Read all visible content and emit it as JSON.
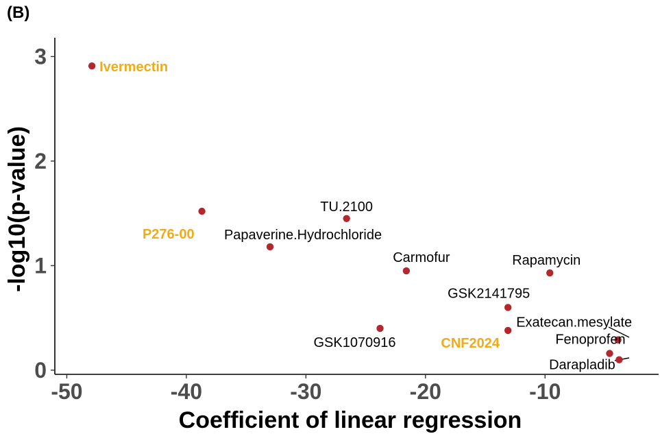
{
  "panel_tag": "(B)",
  "chart_data": {
    "type": "scatter",
    "title": "",
    "xlabel": "Coefficient of linear regression",
    "ylabel": "-log10(p-value)",
    "xlim": [
      -51,
      -0.5
    ],
    "ylim": [
      -0.04,
      3.18
    ],
    "xticks": [
      -50,
      -40,
      -30,
      -20,
      -10
    ],
    "xtick_labels": [
      "-50",
      "-40",
      "-30",
      "-20",
      "-10"
    ],
    "yticks": [
      0,
      1,
      2,
      3
    ],
    "ytick_labels": [
      "0",
      "1",
      "2",
      "3"
    ],
    "grid": false,
    "point_color": "#b2282d",
    "highlight_color": "#f0ab1b",
    "points": [
      {
        "label": "Ivermectin",
        "x": -47.9,
        "y": 2.91,
        "highlight": true
      },
      {
        "label": "P276-00",
        "x": -38.7,
        "y": 1.52,
        "highlight": true
      },
      {
        "label": "TU.2100",
        "x": -26.6,
        "y": 1.45,
        "highlight": false
      },
      {
        "label": "Papaverine.Hydrochloride",
        "x": -33.0,
        "y": 1.18,
        "highlight": false
      },
      {
        "label": "Carmofur",
        "x": -21.6,
        "y": 0.95,
        "highlight": false
      },
      {
        "label": "Rapamycin",
        "x": -9.6,
        "y": 0.93,
        "highlight": false
      },
      {
        "label": "GSK2141795",
        "x": -13.1,
        "y": 0.6,
        "highlight": false
      },
      {
        "label": "GSK1070916",
        "x": -23.8,
        "y": 0.4,
        "highlight": false
      },
      {
        "label": "Exatecan.mesylate",
        "x": -3.9,
        "y": 0.29,
        "highlight": false
      },
      {
        "label": "CNF2024",
        "x": -13.1,
        "y": 0.38,
        "highlight": true
      },
      {
        "label": "Fenoprofen",
        "x": -4.6,
        "y": 0.16,
        "highlight": false
      },
      {
        "label": "Darapladib",
        "x": -3.8,
        "y": 0.1,
        "highlight": false
      }
    ]
  }
}
